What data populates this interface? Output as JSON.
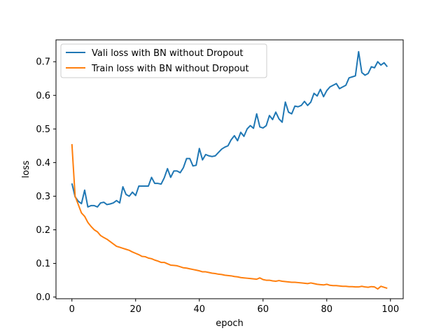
{
  "chart_data": {
    "type": "line",
    "title": "",
    "xlabel": "epoch",
    "ylabel": "loss",
    "xlim": [
      -5,
      104
    ],
    "ylim": [
      -0.005,
      0.765
    ],
    "xticks": [
      0,
      20,
      40,
      60,
      80,
      100
    ],
    "yticks": [
      0.0,
      0.1,
      0.2,
      0.3,
      0.4,
      0.5,
      0.6,
      0.7
    ],
    "ytick_labels": [
      "0.0",
      "0.1",
      "0.2",
      "0.3",
      "0.4",
      "0.5",
      "0.6",
      "0.7"
    ],
    "grid": false,
    "legend_position": "top-left",
    "series": [
      {
        "name": "Vali loss with BN without Dropout",
        "color": "#1f77b4",
        "x": [
          0,
          1,
          2,
          3,
          4,
          5,
          6,
          7,
          8,
          9,
          10,
          11,
          12,
          13,
          14,
          15,
          16,
          17,
          18,
          19,
          20,
          21,
          22,
          23,
          24,
          25,
          26,
          27,
          28,
          29,
          30,
          31,
          32,
          33,
          34,
          35,
          36,
          37,
          38,
          39,
          40,
          41,
          42,
          43,
          44,
          45,
          46,
          47,
          48,
          49,
          50,
          51,
          52,
          53,
          54,
          55,
          56,
          57,
          58,
          59,
          60,
          61,
          62,
          63,
          64,
          65,
          66,
          67,
          68,
          69,
          70,
          71,
          72,
          73,
          74,
          75,
          76,
          77,
          78,
          79,
          80,
          81,
          82,
          83,
          84,
          85,
          86,
          87,
          88,
          89,
          90,
          91,
          92,
          93,
          94,
          95,
          96,
          97,
          98,
          99
        ],
        "values": [
          0.338,
          0.298,
          0.285,
          0.278,
          0.318,
          0.268,
          0.272,
          0.272,
          0.268,
          0.28,
          0.282,
          0.275,
          0.277,
          0.28,
          0.287,
          0.28,
          0.328,
          0.305,
          0.3,
          0.312,
          0.302,
          0.33,
          0.33,
          0.33,
          0.33,
          0.356,
          0.338,
          0.338,
          0.336,
          0.355,
          0.382,
          0.356,
          0.375,
          0.375,
          0.37,
          0.385,
          0.412,
          0.412,
          0.39,
          0.392,
          0.442,
          0.408,
          0.424,
          0.42,
          0.418,
          0.42,
          0.43,
          0.44,
          0.446,
          0.45,
          0.468,
          0.48,
          0.465,
          0.49,
          0.478,
          0.5,
          0.51,
          0.502,
          0.545,
          0.506,
          0.503,
          0.51,
          0.54,
          0.528,
          0.55,
          0.53,
          0.52,
          0.58,
          0.55,
          0.545,
          0.568,
          0.566,
          0.57,
          0.582,
          0.57,
          0.58,
          0.606,
          0.598,
          0.618,
          0.596,
          0.614,
          0.625,
          0.63,
          0.635,
          0.62,
          0.625,
          0.63,
          0.652,
          0.655,
          0.658,
          0.73,
          0.668,
          0.66,
          0.665,
          0.685,
          0.682,
          0.7,
          0.69,
          0.697,
          0.685
        ]
      },
      {
        "name": "Train loss with BN without Dropout",
        "color": "#ff7f0e",
        "x": [
          0,
          1,
          2,
          3,
          4,
          5,
          6,
          7,
          8,
          9,
          10,
          11,
          12,
          13,
          14,
          15,
          16,
          17,
          18,
          19,
          20,
          21,
          22,
          23,
          24,
          25,
          26,
          27,
          28,
          29,
          30,
          31,
          32,
          33,
          34,
          35,
          36,
          37,
          38,
          39,
          40,
          41,
          42,
          43,
          44,
          45,
          46,
          47,
          48,
          49,
          50,
          51,
          52,
          53,
          54,
          55,
          56,
          57,
          58,
          59,
          60,
          61,
          62,
          63,
          64,
          65,
          66,
          67,
          68,
          69,
          70,
          71,
          72,
          73,
          74,
          75,
          76,
          77,
          78,
          79,
          80,
          81,
          82,
          83,
          84,
          85,
          86,
          87,
          88,
          89,
          90,
          91,
          92,
          93,
          94,
          95,
          96,
          97,
          98,
          99
        ],
        "values": [
          0.455,
          0.3,
          0.275,
          0.25,
          0.24,
          0.222,
          0.21,
          0.2,
          0.194,
          0.183,
          0.177,
          0.172,
          0.165,
          0.158,
          0.151,
          0.148,
          0.145,
          0.142,
          0.139,
          0.134,
          0.13,
          0.126,
          0.121,
          0.12,
          0.116,
          0.114,
          0.11,
          0.107,
          0.103,
          0.103,
          0.099,
          0.095,
          0.094,
          0.093,
          0.09,
          0.087,
          0.086,
          0.084,
          0.082,
          0.08,
          0.078,
          0.075,
          0.075,
          0.073,
          0.071,
          0.07,
          0.068,
          0.067,
          0.065,
          0.064,
          0.063,
          0.061,
          0.06,
          0.058,
          0.057,
          0.056,
          0.055,
          0.054,
          0.053,
          0.057,
          0.052,
          0.05,
          0.05,
          0.048,
          0.047,
          0.049,
          0.047,
          0.046,
          0.045,
          0.044,
          0.044,
          0.043,
          0.042,
          0.041,
          0.04,
          0.042,
          0.04,
          0.038,
          0.037,
          0.036,
          0.038,
          0.035,
          0.034,
          0.034,
          0.033,
          0.032,
          0.032,
          0.031,
          0.031,
          0.03,
          0.03,
          0.032,
          0.03,
          0.029,
          0.031,
          0.03,
          0.024,
          0.032,
          0.029,
          0.026
        ]
      }
    ]
  }
}
